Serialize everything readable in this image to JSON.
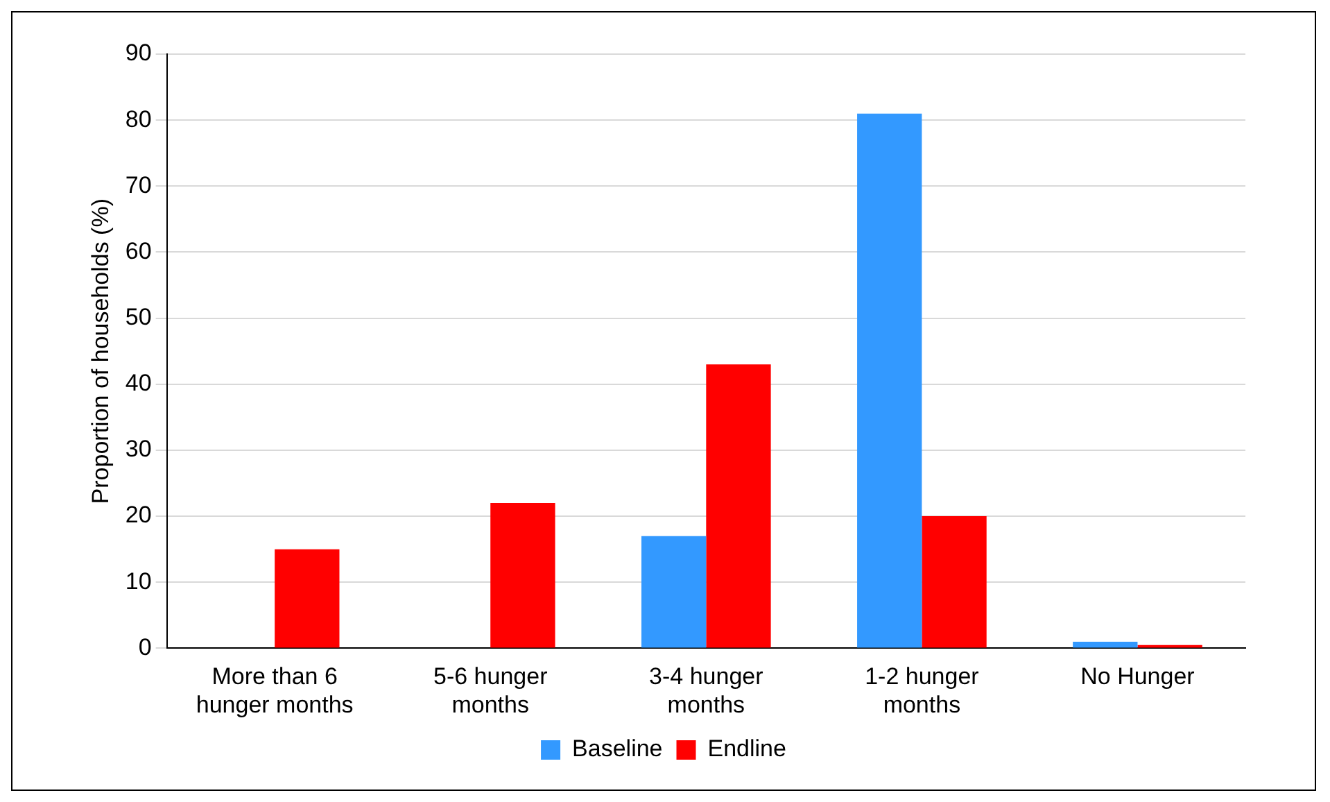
{
  "chart_data": {
    "type": "bar",
    "ylabel": "Proportion of households (%)",
    "categories": [
      "More than 6 hunger months",
      "5-6 hunger months",
      "3-4 hunger months",
      "1-2 hunger months",
      "No Hunger"
    ],
    "series": [
      {
        "name": "Baseline",
        "color": "#3399ff",
        "values": [
          0,
          0,
          17,
          81,
          1
        ]
      },
      {
        "name": "Endline",
        "color": "#ff0000",
        "values": [
          15,
          22,
          43,
          20,
          0.5
        ]
      }
    ],
    "ylim": [
      0,
      90
    ],
    "yticks": [
      0,
      10,
      20,
      30,
      40,
      50,
      60,
      70,
      80,
      90
    ],
    "grid": "y",
    "legend": "bottom"
  }
}
